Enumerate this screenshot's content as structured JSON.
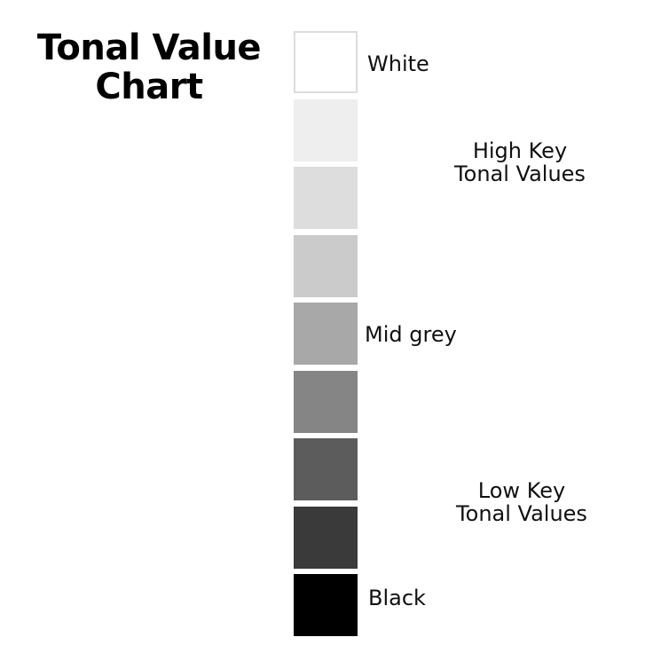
{
  "title": {
    "line1": "Tonal Value",
    "line2": "Chart"
  },
  "swatches": [
    {
      "name": "swatch-1",
      "color": "#ffffff"
    },
    {
      "name": "swatch-2",
      "color": "#eeeeee"
    },
    {
      "name": "swatch-3",
      "color": "#dddddd"
    },
    {
      "name": "swatch-4",
      "color": "#cbcbcb"
    },
    {
      "name": "swatch-5",
      "color": "#a8a8a8"
    },
    {
      "name": "swatch-6",
      "color": "#858585"
    },
    {
      "name": "swatch-7",
      "color": "#5c5c5c"
    },
    {
      "name": "swatch-8",
      "color": "#3a3a3a"
    },
    {
      "name": "swatch-9",
      "color": "#000000"
    }
  ],
  "labels": {
    "white": "White",
    "high_key_line1": "High Key",
    "high_key_line2": "Tonal Values",
    "mid_grey": "Mid grey",
    "low_key_line1": "Low Key",
    "low_key_line2": "Tonal Values",
    "black": "Black"
  }
}
